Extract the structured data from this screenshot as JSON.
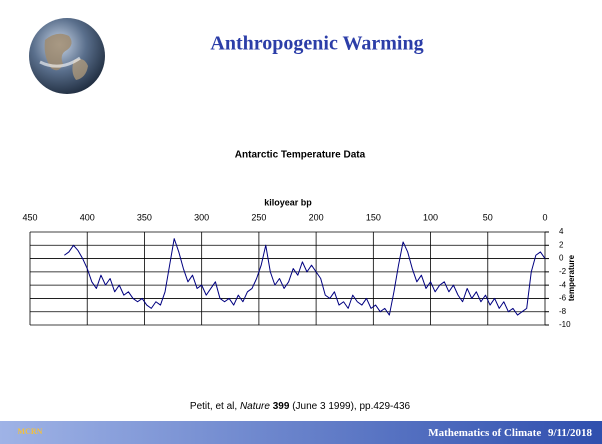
{
  "slide": {
    "title": "Anthropogenic Warming",
    "citation": {
      "authors": "Petit, et al,",
      "journal": "Nature",
      "volume": "399",
      "rest": "(June 3 1999), pp.429-436"
    },
    "footer": {
      "course": "Mathematics of Climate",
      "date": "9/11/2018"
    },
    "logo": "MCRN"
  },
  "chart_data": {
    "type": "line",
    "title": "Antarctic Temperature Data",
    "x_label": "kiloyear bp",
    "y_label": "temperature",
    "xlim": [
      450,
      0
    ],
    "xticks": [
      450,
      400,
      350,
      300,
      250,
      200,
      150,
      100,
      50,
      0
    ],
    "ylim": [
      -10,
      4
    ],
    "yticks": [
      4,
      2,
      0,
      -2,
      -4,
      -6,
      -8,
      -10
    ],
    "grid": true,
    "color": "#000080",
    "x": [
      420,
      416,
      412,
      408,
      404,
      400,
      396,
      392,
      388,
      384,
      380,
      376,
      372,
      368,
      364,
      360,
      356,
      352,
      348,
      344,
      340,
      336,
      332,
      328,
      324,
      320,
      316,
      312,
      308,
      304,
      300,
      296,
      292,
      288,
      284,
      280,
      276,
      272,
      268,
      264,
      260,
      256,
      252,
      248,
      244,
      240,
      236,
      232,
      228,
      224,
      220,
      216,
      212,
      208,
      204,
      200,
      196,
      192,
      188,
      184,
      180,
      176,
      172,
      168,
      164,
      160,
      156,
      152,
      148,
      144,
      140,
      136,
      132,
      128,
      124,
      120,
      116,
      112,
      108,
      104,
      100,
      96,
      92,
      88,
      84,
      80,
      76,
      72,
      68,
      64,
      60,
      56,
      52,
      48,
      44,
      40,
      36,
      32,
      28,
      24,
      20,
      16,
      12,
      8,
      4,
      0
    ],
    "values": [
      0.5,
      1.0,
      2.0,
      1.2,
      0.0,
      -1.5,
      -3.5,
      -4.5,
      -2.5,
      -4.0,
      -3.0,
      -5.0,
      -4.0,
      -5.5,
      -5.0,
      -6.0,
      -6.5,
      -6.0,
      -7.0,
      -7.5,
      -6.5,
      -7.0,
      -5.0,
      -1.0,
      3.0,
      1.0,
      -1.5,
      -3.5,
      -2.5,
      -4.5,
      -4.0,
      -5.5,
      -4.5,
      -3.5,
      -6.0,
      -6.5,
      -6.0,
      -7.0,
      -5.5,
      -6.5,
      -5.0,
      -4.5,
      -3.0,
      -1.0,
      2.0,
      -2.0,
      -4.0,
      -3.0,
      -4.5,
      -3.5,
      -1.5,
      -2.5,
      -0.5,
      -2.0,
      -1.0,
      -2.0,
      -3.0,
      -5.5,
      -6.0,
      -5.0,
      -7.0,
      -6.5,
      -7.5,
      -5.5,
      -6.5,
      -7.0,
      -6.0,
      -7.5,
      -7.0,
      -8.0,
      -7.5,
      -8.5,
      -5.0,
      -1.0,
      2.5,
      1.0,
      -1.5,
      -3.5,
      -2.5,
      -4.5,
      -3.5,
      -5.0,
      -4.0,
      -3.5,
      -5.0,
      -4.0,
      -5.5,
      -6.5,
      -4.5,
      -6.0,
      -5.0,
      -6.5,
      -5.5,
      -7.0,
      -6.0,
      -7.5,
      -6.5,
      -8.0,
      -7.5,
      -8.5,
      -8.0,
      -7.5,
      -2.0,
      0.5,
      1.0,
      0.0
    ]
  }
}
